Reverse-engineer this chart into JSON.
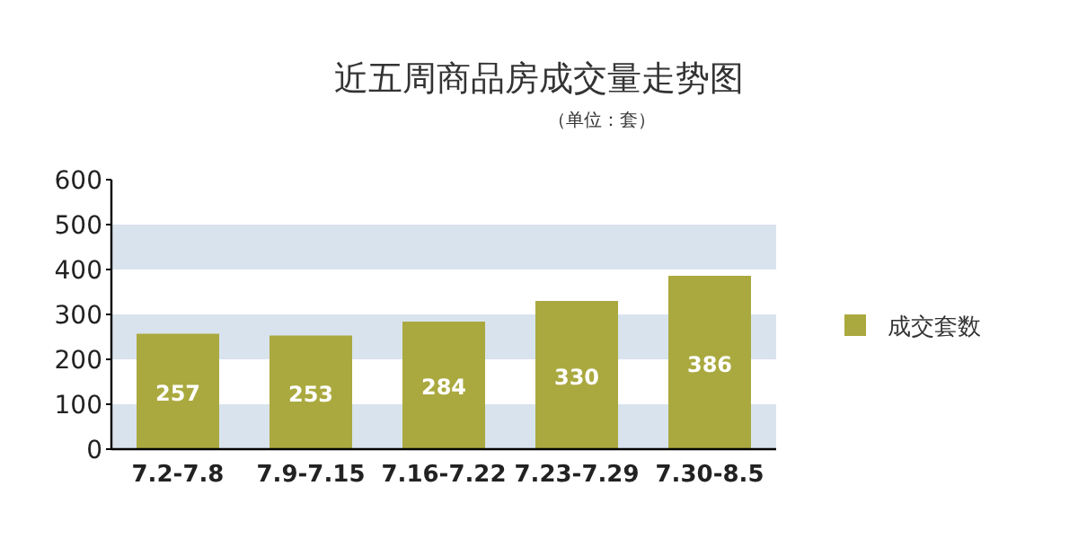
{
  "chart_data": {
    "type": "bar",
    "title": "近五周商品房成交量走势图",
    "subtitle": "（单位：套）",
    "categories": [
      "7.2-7.8",
      "7.9-7.15",
      "7.16-7.22",
      "7.23-7.29",
      "7.30-8.5"
    ],
    "series": [
      {
        "name": "成交套数",
        "color": "#aaa93f",
        "values": [
          257,
          253,
          284,
          330,
          386
        ]
      }
    ],
    "ylim": [
      0,
      600
    ],
    "yticks": [
      0,
      100,
      200,
      300,
      400,
      500,
      600
    ],
    "bands": [
      {
        "axis": "y",
        "from": 0,
        "to": 100,
        "color": "#d9e3ee"
      },
      {
        "axis": "y",
        "from": 200,
        "to": 300,
        "color": "#d9e3ee"
      },
      {
        "axis": "y",
        "from": 400,
        "to": 500,
        "color": "#d9e3ee"
      }
    ],
    "data_labels": true,
    "legend": "right",
    "grid": false
  }
}
